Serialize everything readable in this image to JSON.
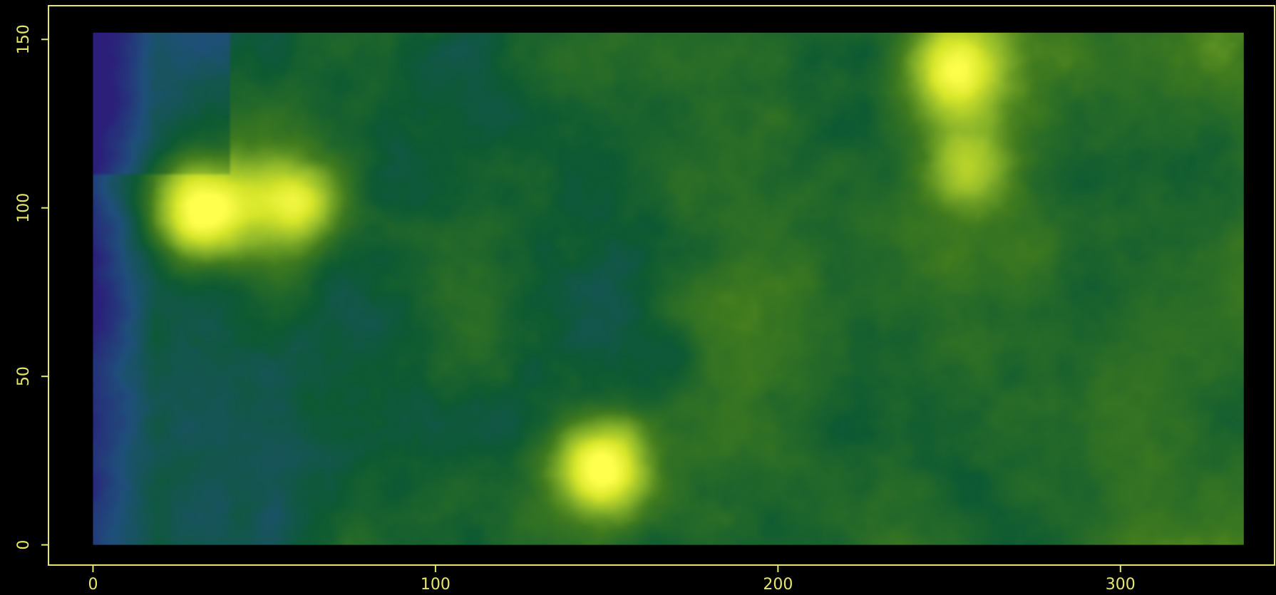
{
  "chart_data": {
    "type": "heatmap",
    "title": "",
    "xlabel": "",
    "ylabel": "",
    "xlim": [
      -13,
      345
    ],
    "ylim": [
      -6,
      160
    ],
    "raster_extent": {
      "x": [
        0,
        336
      ],
      "y": [
        0,
        152
      ]
    },
    "x_ticks": [
      "0",
      "100",
      "200",
      "300"
    ],
    "y_ticks": [
      "0",
      "50",
      "100",
      "150"
    ],
    "axis_color": "#e6e66a",
    "background_color": "#000000",
    "colormap": [
      "#2b1f7a",
      "#1f4f7a",
      "#0d5a33",
      "#3f7a1f",
      "#8fb82a",
      "#d6e62a",
      "#ffff4d"
    ],
    "bright_spots": [
      {
        "x": 148,
        "y": 23,
        "value": 1.0
      },
      {
        "x": 32,
        "y": 100,
        "value": 0.9
      },
      {
        "x": 251,
        "y": 141,
        "value": 0.75
      },
      {
        "x": 59,
        "y": 101,
        "value": 0.7
      },
      {
        "x": 255,
        "y": 112,
        "value": 0.55
      }
    ]
  }
}
